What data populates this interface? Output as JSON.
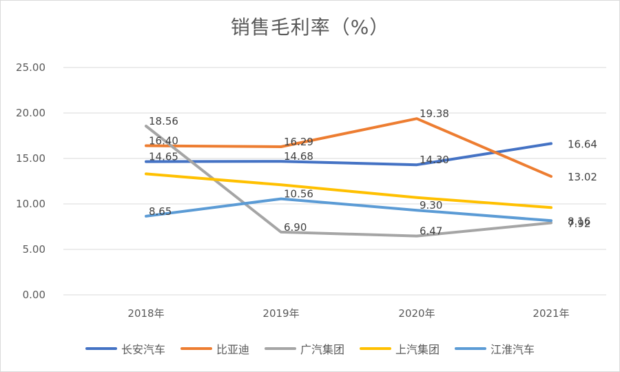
{
  "chart_data": {
    "type": "line",
    "title": "销售毛利率（%）",
    "categories": [
      "2018年",
      "2019年",
      "2020年",
      "2021年"
    ],
    "ylim": [
      0,
      25
    ],
    "yticks": [
      "0.00",
      "5.00",
      "10.00",
      "15.00",
      "20.00",
      "25.00"
    ],
    "grid": true,
    "legend_position": "bottom",
    "series": [
      {
        "name": "长安汽车",
        "color": "#4472C4",
        "values": [
          14.65,
          14.68,
          14.3,
          16.64
        ],
        "labels": [
          "14.65",
          "14.68",
          "14.30",
          "16.64"
        ]
      },
      {
        "name": "比亚迪",
        "color": "#ED7D31",
        "values": [
          16.4,
          16.29,
          19.38,
          13.02
        ],
        "labels": [
          "16.40",
          "16.29",
          "19.38",
          "13.02"
        ]
      },
      {
        "name": "广汽集团",
        "color": "#A5A5A5",
        "values": [
          18.56,
          6.9,
          6.47,
          7.92
        ],
        "labels": [
          "18.56",
          "6.90",
          "6.47",
          "7.92"
        ]
      },
      {
        "name": "上汽集团",
        "color": "#FFC000",
        "values": [
          13.3,
          12.1,
          10.7,
          9.6
        ],
        "labels": [
          "",
          "",
          "",
          ""
        ]
      },
      {
        "name": "江淮汽车",
        "color": "#5B9BD5",
        "values": [
          8.65,
          10.56,
          9.3,
          8.16
        ],
        "labels": [
          "8.65",
          "10.56",
          "9.30",
          "8.16"
        ]
      }
    ]
  }
}
